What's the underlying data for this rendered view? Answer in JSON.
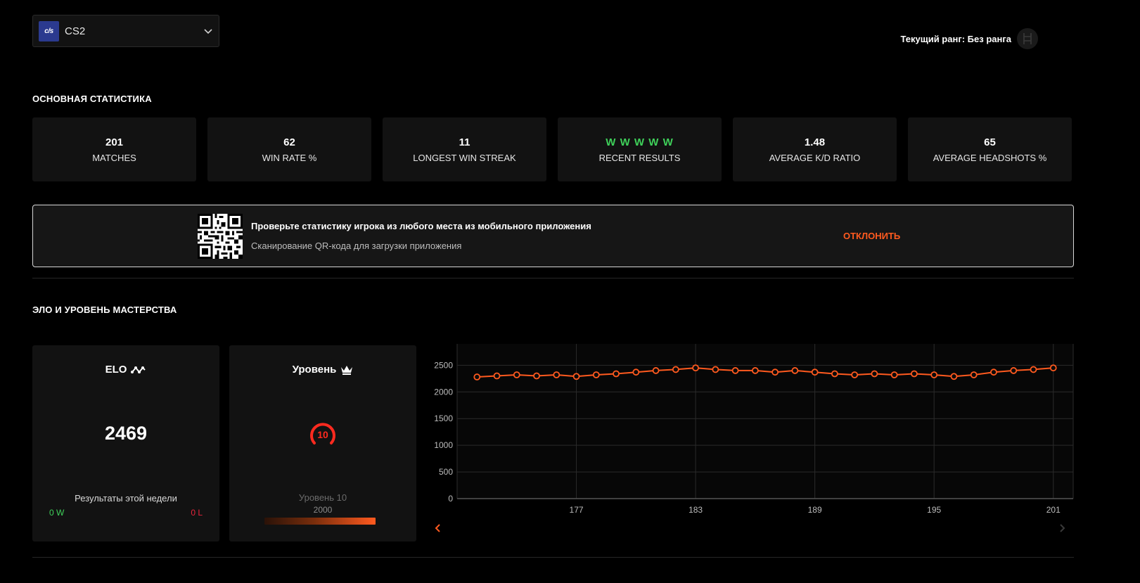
{
  "game_selector": {
    "logo_text": "c/s",
    "game": "CS2"
  },
  "rank": {
    "label": "Текущий ранг: Без ранга"
  },
  "main_stats": {
    "title": "ОСНОВНАЯ СТАТИСТИКА",
    "cards": [
      {
        "value": "201",
        "label": "MATCHES"
      },
      {
        "value": "62",
        "label": "WIN RATE %"
      },
      {
        "value": "11",
        "label": "LONGEST WIN STREAK"
      },
      {
        "value": "W W W W W",
        "label": "RECENT RESULTS"
      },
      {
        "value": "1.48",
        "label": "AVERAGE K/D RATIO"
      },
      {
        "value": "65",
        "label": "AVERAGE HEADSHOTS %"
      }
    ]
  },
  "banner": {
    "title": "Проверьте статистику игрока из любого места из мобильного приложения",
    "subtitle": "Сканирование QR-кода для загрузки приложения",
    "dismiss": "ОТКЛОНИТЬ"
  },
  "elo_section": {
    "title": "ЭЛО И УРОВЕНЬ МАСТЕРСТВА",
    "elo": {
      "label": "ELO",
      "value": "2469",
      "week_label": "Результаты этой недели",
      "wins": "0 W",
      "losses": "0 L"
    },
    "level": {
      "label": "Уровень",
      "badge": "10",
      "level_text": "Уровень 10",
      "min_elo": "2000",
      "progress_fraction": 1.0
    }
  },
  "colors": {
    "accent": "#ff5a1f",
    "green": "#3fd15a",
    "red": "#e8243c"
  },
  "chart_data": {
    "type": "line",
    "x": [
      172,
      173,
      174,
      175,
      176,
      177,
      178,
      179,
      180,
      181,
      182,
      183,
      184,
      185,
      186,
      187,
      188,
      189,
      190,
      191,
      192,
      193,
      194,
      195,
      196,
      197,
      198,
      199,
      200,
      201
    ],
    "values": [
      2280,
      2300,
      2320,
      2300,
      2320,
      2290,
      2320,
      2340,
      2370,
      2400,
      2420,
      2450,
      2420,
      2400,
      2400,
      2370,
      2400,
      2370,
      2340,
      2320,
      2340,
      2320,
      2340,
      2320,
      2290,
      2320,
      2370,
      2400,
      2420,
      2450
    ],
    "x_ticks": [
      "177",
      "183",
      "189",
      "195",
      "201"
    ],
    "y_ticks": [
      "0",
      "500",
      "1000",
      "1500",
      "2000",
      "2500"
    ],
    "ylim": [
      0,
      2900
    ],
    "grid": true,
    "line_color": "#ff5a1f"
  }
}
